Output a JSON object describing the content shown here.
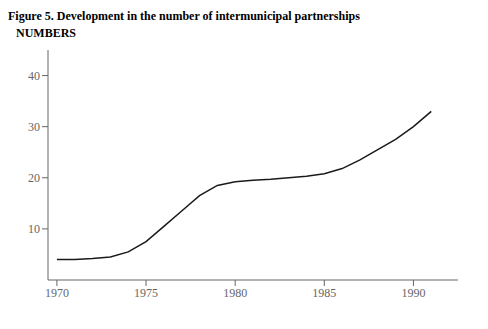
{
  "chart_data": {
    "type": "line",
    "title": "Figure 5. Development in the number of intermunicipal partnerships",
    "ylabel": "NUMBERS",
    "x": [
      1970,
      1971,
      1972,
      1973,
      1974,
      1975,
      1976,
      1977,
      1978,
      1979,
      1980,
      1981,
      1982,
      1983,
      1984,
      1985,
      1986,
      1987,
      1988,
      1989,
      1990,
      1991
    ],
    "values": [
      4.0,
      4.0,
      4.2,
      4.5,
      5.5,
      7.5,
      10.5,
      13.5,
      16.5,
      18.5,
      19.2,
      19.5,
      19.7,
      20.0,
      20.3,
      20.8,
      21.8,
      23.5,
      25.5,
      27.5,
      30.0,
      33.0
    ],
    "color": "#1a1a1a",
    "xlim": [
      1969.5,
      1992.5
    ],
    "ylim": [
      0,
      45
    ],
    "xticks": [
      1970,
      1975,
      1980,
      1985,
      1990
    ],
    "yticks": [
      10,
      20,
      30,
      40
    ],
    "grid": false
  }
}
